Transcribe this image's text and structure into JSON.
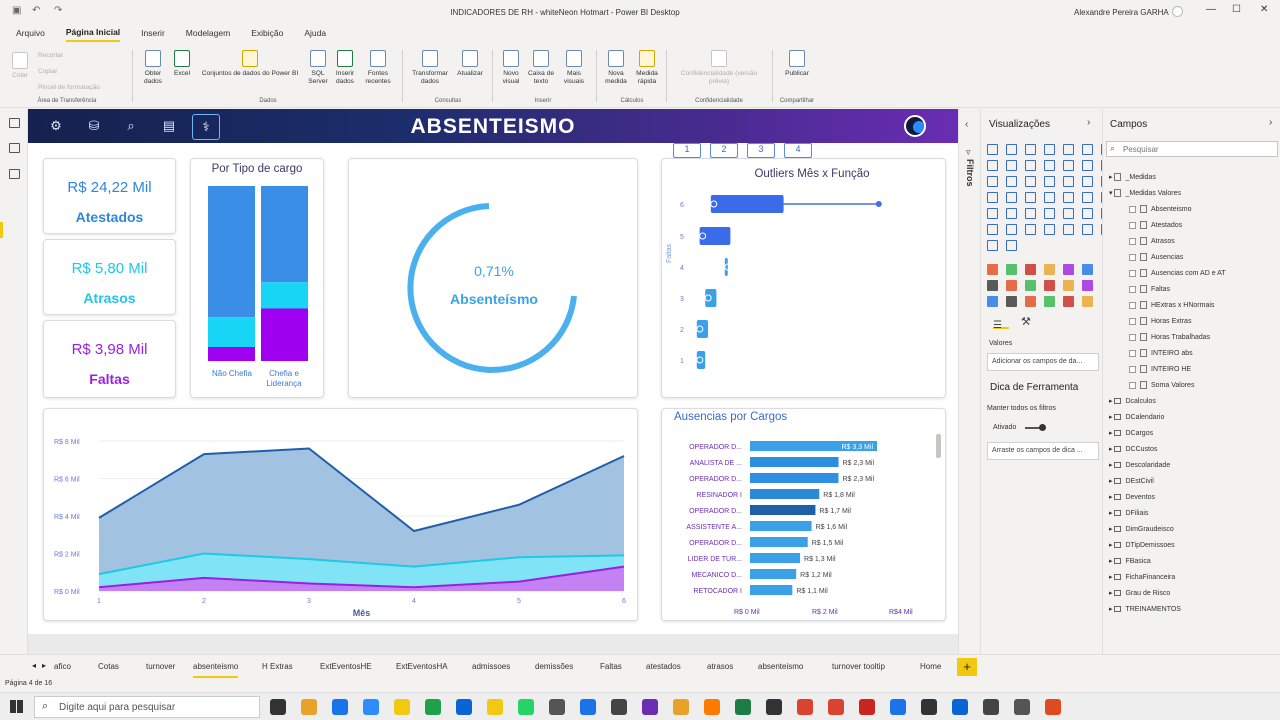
{
  "window": {
    "title": "INDICADORES DE RH - whiteNeon Hotmart - Power BI Desktop",
    "user": "Alexandre Pereira GARHA"
  },
  "menu": [
    "Arquivo",
    "Página Inicial",
    "Inserir",
    "Modelagem",
    "Exibição",
    "Ajuda"
  ],
  "ribbon": {
    "clipboard": {
      "colar": "Colar",
      "recortar": "Recortar",
      "copiar": "Copiar",
      "pincel": "Pincel de formatação",
      "group": "Área de Transferência"
    },
    "dados": {
      "obter": "Obter dados",
      "excel": "Excel",
      "conjuntos": "Conjuntos de dados do Power BI",
      "sql": "SQL Server",
      "inserir": "Inserir dados",
      "fontes": "Fontes recentes",
      "group": "Dados"
    },
    "consultas": {
      "transformar": "Transformar dados",
      "atualizar": "Atualizar",
      "group": "Consultas"
    },
    "inserir": {
      "visual": "Novo visual",
      "caixa": "Caixa de texto",
      "mais": "Mais visuais",
      "group": "Inserir"
    },
    "calculos": {
      "nova": "Nova medida",
      "rapida": "Medida rápida",
      "group": "Cálculos"
    },
    "conf": {
      "label": "Confidencialidade (versão prévia)",
      "group": "Confidencialidade"
    },
    "compartilhar": {
      "publicar": "Publicar",
      "group": "Compartilhar"
    }
  },
  "report": {
    "title": "ABSENTEISMO",
    "kpis": [
      {
        "value": "R$ 24,22 Mil",
        "label": "Atestados",
        "color": "#2e86de"
      },
      {
        "value": "R$ 5,80 Mil",
        "label": "Atrasos",
        "color": "#1ec8e8"
      },
      {
        "value": "R$ 3,98 Mil",
        "label": "Faltas",
        "color": "#9b1fe0"
      }
    ],
    "cargo": {
      "title": "Por Tipo de cargo",
      "cats": [
        "Não Chefia",
        "Chefia e Liderança"
      ],
      "colors": [
        "#3a8ee6",
        "#18d4f5",
        "#a000f0"
      ]
    },
    "gauge": {
      "value": "0,71%",
      "label": "Absenteísmo"
    },
    "outliers": {
      "title": "Outliers Mês x Função",
      "buttons": [
        "1",
        "2",
        "3",
        "4"
      ],
      "ylabel": "Faltas",
      "yticks": [
        "6",
        "5",
        "4",
        "3",
        "2",
        "1"
      ]
    },
    "area": {
      "yticks": [
        "R$ 8 Mil",
        "R$ 6 Mil",
        "R$ 4 Mil",
        "R$ 2 Mil",
        "R$ 0 Mil"
      ],
      "xticks": [
        "1",
        "2",
        "3",
        "4",
        "5",
        "6"
      ],
      "xlabel": "Mês"
    },
    "ausencias": {
      "title": "Ausencias por Cargos",
      "xticks": [
        "R$ 0 Mil",
        "R$ 2 Mil",
        "R$4 Mil"
      ]
    }
  },
  "chart_data": [
    {
      "type": "bar",
      "title": "Por Tipo de cargo",
      "categories": [
        "Não Chefia",
        "Chefia e Liderança"
      ],
      "series": [
        {
          "name": "Atestados",
          "values": [
            0.75,
            0.55
          ]
        },
        {
          "name": "Atrasos",
          "values": [
            0.17,
            0.15
          ]
        },
        {
          "name": "Faltas",
          "values": [
            0.08,
            0.3
          ]
        }
      ]
    },
    {
      "type": "area",
      "xlabel": "Mês",
      "x": [
        1,
        2,
        3,
        4,
        5,
        6
      ],
      "ylim": [
        0,
        8
      ],
      "series": [
        {
          "name": "Atestados",
          "values": [
            3.9,
            7.3,
            7.6,
            3.2,
            4.6,
            7.2
          ]
        },
        {
          "name": "Atrasos",
          "values": [
            0.9,
            2.0,
            1.7,
            1.3,
            1.8,
            1.9
          ]
        },
        {
          "name": "Faltas",
          "values": [
            0.2,
            0.7,
            0.4,
            0.2,
            0.5,
            1.3
          ]
        }
      ]
    },
    {
      "type": "bar",
      "title": "Ausencias por Cargos",
      "categories": [
        "OPERADOR D...",
        "ANALISTA DE ...",
        "OPERADOR D...",
        "RESINADOR I",
        "OPERADOR D...",
        "ASSISTENTE A...",
        "OPERADOR D...",
        "LIDER DE TUR...",
        "MECANICO D...",
        "RETOCADOR I"
      ],
      "values": [
        3.3,
        2.3,
        2.3,
        1.8,
        1.7,
        1.6,
        1.5,
        1.3,
        1.2,
        1.1
      ],
      "labels": [
        "R$ 3,3 Mil",
        "R$ 2,3 Mil",
        "R$ 2,3 Mil",
        "R$ 1,8 Mil",
        "R$ 1,7 Mil",
        "R$ 1,6 Mil",
        "R$ 1,5 Mil",
        "R$ 1,3 Mil",
        "R$ 1,2 Mil",
        "R$ 1,1 Mil"
      ],
      "xlim": [
        0,
        4.2
      ]
    },
    {
      "type": "scatter",
      "title": "Outliers Mês x Função",
      "ylabel": "Faltas",
      "boxes": [
        {
          "y": 6,
          "q1": 0.6,
          "q3": 3.2,
          "max": 6.6
        },
        {
          "y": 5,
          "q1": 0.2,
          "q3": 1.3
        },
        {
          "y": 4,
          "q1": 1.1,
          "q3": 1.2
        },
        {
          "y": 3,
          "q1": 0.4,
          "q3": 0.8
        },
        {
          "y": 2,
          "q1": 0.1,
          "q3": 0.5
        },
        {
          "y": 1,
          "q1": 0.1,
          "q3": 0.4
        }
      ]
    }
  ],
  "viz": {
    "title": "Visualizações",
    "valores": "Valores",
    "add": "Adicionar os campos de da...",
    "dica": "Dica de Ferramenta",
    "manter": "Manter todos os filtros",
    "ativado": "Ativado",
    "arraste": "Arraste os campos de dica ...",
    "filtros": "Filtros"
  },
  "fields": {
    "title": "Campos",
    "search": "Pesquisar",
    "tables1": [
      "_Medidas",
      "_Medidas Valores"
    ],
    "measures": [
      "Absenteismo",
      "Atestados",
      "Atrasos",
      "Ausencias",
      "Ausencias com AD e AT",
      "Faltas",
      "HExtras x HNormais",
      "Horas Extras",
      "Horas Trabalhadas",
      "INTEIRO abs",
      "INTEIRO HE",
      "Soma Valores"
    ],
    "tables2": [
      "Dcalculos",
      "DCalendario",
      "DCargos",
      "DCCustos",
      "Descolaridade",
      "DEstCivil",
      "Deventos",
      "DFiliais",
      "DimGraudeisco",
      "DTipDemissoes",
      "FBasica",
      "FichaFinanceira",
      "Grau de Risco",
      "TREINAMENTOS"
    ]
  },
  "pages": [
    "afico",
    "Cotas",
    "turnover",
    "absenteismo",
    "H Extras",
    "ExtEventosHE",
    "ExtEventosHA",
    "admissoes",
    "demissões",
    "Faltas",
    "atestados",
    "atrasos",
    "absenteismo",
    "turnover tooltip",
    "Home"
  ],
  "status": "Página 4 de 16",
  "taskbar": {
    "search": "Digite aqui para pesquisar"
  }
}
